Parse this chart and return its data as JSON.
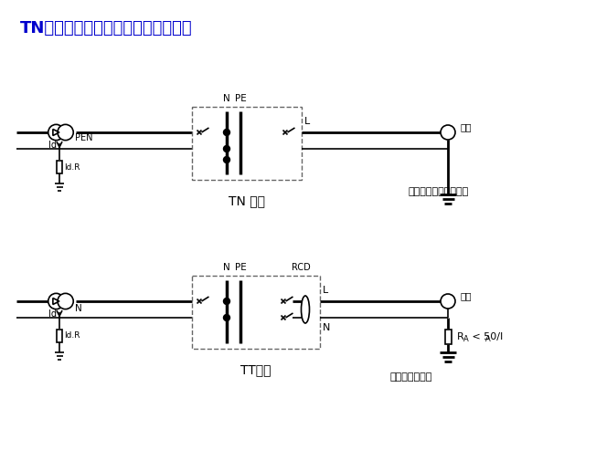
{
  "title": "TN系统是否不能用于室外电气装置？",
  "title_color": "#0000CC",
  "title_fontsize": 13,
  "bg_color": "#FFFFFF",
  "line_color": "#000000",
  "lw": 1.2,
  "tlw": 2.0,
  "tn_label": "TN 系统",
  "tt_label": "TT系统",
  "tn_note": "（需局部等电位联结）",
  "tt_note": "（需单独接地）",
  "ra_label": "R",
  "ra_sub": "A",
  "ra_rest": " < 50/I",
  "ra_sub2": "A",
  "pen_label": "PEN",
  "n_label": "N",
  "pe_label": "PE",
  "l_label": "L",
  "id_label": "Id",
  "idr_label": "Id.R",
  "rcd_label": "RCD",
  "roadlamp_label": "路灯"
}
